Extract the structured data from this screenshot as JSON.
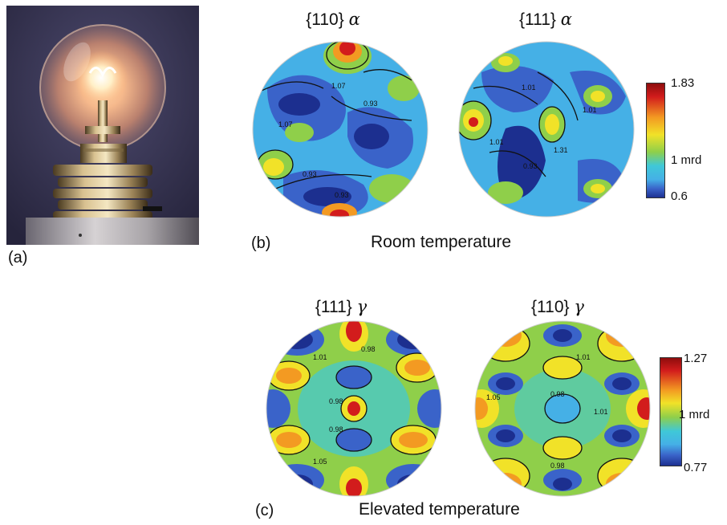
{
  "panels": {
    "a": {
      "label": "(a)"
    },
    "b": {
      "label": "(b)",
      "caption": "Room temperature",
      "figures": [
        {
          "plane": "{110}",
          "phase": "α",
          "contours": [
            "1.07",
            "1.07",
            "0.93",
            "0.93",
            "0.93"
          ]
        },
        {
          "plane": "{111}",
          "phase": "α",
          "contours": [
            "1.01",
            "1.01",
            "1.01",
            "0.93",
            "1.31"
          ]
        }
      ],
      "scale": {
        "max": "1.83",
        "mid": "1 mrd",
        "min": "0.6"
      }
    },
    "c": {
      "label": "(c)",
      "caption": "Elevated temperature",
      "figures": [
        {
          "plane": "{111}",
          "phase": "γ",
          "contours": [
            "1.01",
            "0.98",
            "0.98",
            "0.98",
            "1.05"
          ]
        },
        {
          "plane": "{110}",
          "phase": "γ",
          "contours": [
            "1.01",
            "1.05",
            "0.98",
            "1.01",
            "0.98"
          ]
        }
      ],
      "scale": {
        "max": "1.27",
        "mid": "1 mrd",
        "min": "0.77"
      }
    }
  },
  "colors": {
    "dark_blue": "#1c2f8f",
    "mid_blue": "#3a63c9",
    "light_blue": "#45b0e6",
    "cyan": "#3fc8d8",
    "green": "#8fcf4a",
    "yellow": "#f1e228",
    "orange": "#f39a22",
    "red": "#d21c1c",
    "dark_red": "#8c0c0c"
  }
}
